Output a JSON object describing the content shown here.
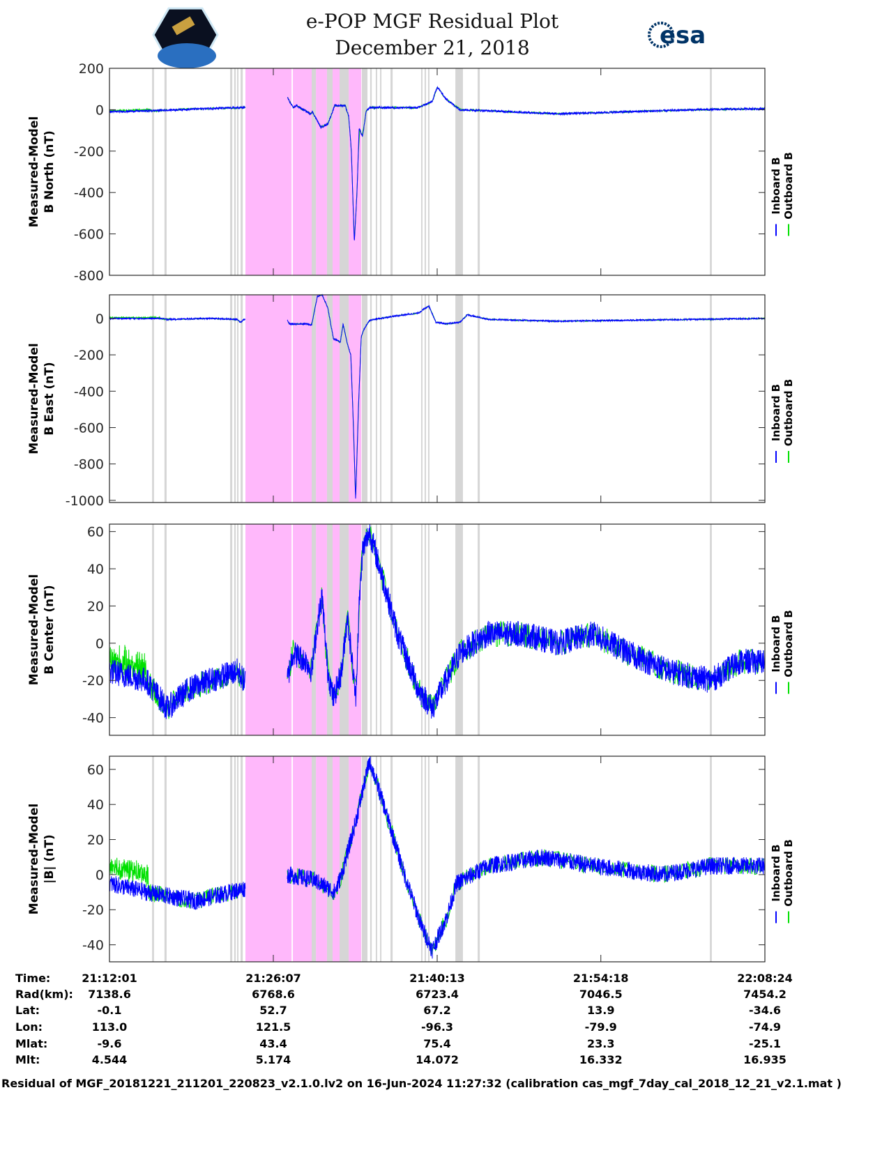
{
  "header": {
    "title": "e-POP MGF Residual Plot",
    "date": "December 21, 2018",
    "left_logo": "CASSIOPE",
    "right_logo": "esa"
  },
  "colors": {
    "inboard": "#0000ff",
    "outboard": "#00e000",
    "pink_band": "#ffb8fb",
    "gray_band": "#d6d6d6"
  },
  "chart_data": {
    "type": "line",
    "x_unit": "seconds since 21:12:01",
    "xlim": [
      0,
      3384
    ],
    "xticks": [
      0,
      846,
      1692,
      2537,
      3384
    ],
    "legend": [
      "Inboard B",
      "Outboard B"
    ],
    "legend_placement": "right",
    "gray_bands": [
      [
        220,
        230
      ],
      [
        284,
        295
      ],
      [
        623,
        634
      ],
      [
        644,
        652
      ],
      [
        659,
        666
      ],
      [
        677,
        688
      ],
      [
        1044,
        1066
      ],
      [
        1123,
        1152
      ],
      [
        1188,
        1235
      ],
      [
        1303,
        1332
      ],
      [
        1346,
        1354
      ],
      [
        1375,
        1382
      ],
      [
        1397,
        1404
      ],
      [
        1451,
        1462
      ],
      [
        1609,
        1616
      ],
      [
        1627,
        1634
      ],
      [
        1645,
        1652
      ],
      [
        1786,
        1825
      ],
      [
        1901,
        1912
      ],
      [
        3100,
        3110
      ]
    ],
    "pink_bands": [
      [
        702,
        940
      ],
      [
        947,
        1044
      ],
      [
        1066,
        1123
      ],
      [
        1152,
        1188
      ],
      [
        1235,
        1300
      ]
    ],
    "data_gap": [
      702,
      918
    ],
    "panels": [
      {
        "ylabel": [
          "Measured-Model",
          "B North (nT)"
        ],
        "ylim": [
          -800,
          200
        ],
        "yticks": [
          200,
          0,
          -200,
          -400,
          -600,
          -800
        ],
        "noise": 5,
        "green_until": 220,
        "green_offset": 4,
        "points": [
          [
            0,
            -10
          ],
          [
            220,
            -5
          ],
          [
            479,
            5
          ],
          [
            695,
            10
          ],
          [
            918,
            60
          ],
          [
            947,
            10
          ],
          [
            965,
            20
          ],
          [
            1037,
            -20
          ],
          [
            1048,
            -10
          ],
          [
            1091,
            -85
          ],
          [
            1127,
            -70
          ],
          [
            1163,
            20
          ],
          [
            1217,
            20
          ],
          [
            1235,
            -30
          ],
          [
            1249,
            -200
          ],
          [
            1264,
            -640
          ],
          [
            1278,
            -400
          ],
          [
            1289,
            -90
          ],
          [
            1307,
            -130
          ],
          [
            1325,
            -10
          ],
          [
            1343,
            10
          ],
          [
            1595,
            10
          ],
          [
            1667,
            40
          ],
          [
            1692,
            110
          ],
          [
            1739,
            50
          ],
          [
            1811,
            0
          ],
          [
            1955,
            -5
          ],
          [
            2315,
            -20
          ],
          [
            2675,
            -10
          ],
          [
            3035,
            0
          ],
          [
            3384,
            5
          ]
        ]
      },
      {
        "ylabel": [
          "Measured-Model",
          "B East (nT)"
        ],
        "ylim": [
          -1012,
          130
        ],
        "yticks": [
          0,
          -200,
          -400,
          -600,
          -800,
          -1000
        ],
        "noise": 4,
        "green_until": 263,
        "green_offset": 4,
        "points": [
          [
            0,
            0
          ],
          [
            263,
            0
          ],
          [
            299,
            -5
          ],
          [
            515,
            0
          ],
          [
            659,
            -5
          ],
          [
            677,
            -20
          ],
          [
            695,
            -5
          ],
          [
            918,
            -10
          ],
          [
            929,
            -30
          ],
          [
            1019,
            -30
          ],
          [
            1044,
            -35
          ],
          [
            1073,
            120
          ],
          [
            1098,
            130
          ],
          [
            1127,
            60
          ],
          [
            1156,
            -110
          ],
          [
            1192,
            -130
          ],
          [
            1206,
            -30
          ],
          [
            1228,
            -140
          ],
          [
            1246,
            -200
          ],
          [
            1260,
            -600
          ],
          [
            1271,
            -1000
          ],
          [
            1285,
            -500
          ],
          [
            1300,
            -100
          ],
          [
            1314,
            -60
          ],
          [
            1343,
            -10
          ],
          [
            1451,
            10
          ],
          [
            1595,
            30
          ],
          [
            1649,
            70
          ],
          [
            1685,
            -20
          ],
          [
            1739,
            -30
          ],
          [
            1811,
            -20
          ],
          [
            1847,
            20
          ],
          [
            1955,
            -5
          ],
          [
            2315,
            -15
          ],
          [
            2675,
            -10
          ],
          [
            3384,
            0
          ]
        ]
      },
      {
        "ylabel": [
          "Measured-Model",
          "B Center (nT)"
        ],
        "ylim": [
          -49.5,
          64
        ],
        "yticks": [
          60,
          40,
          20,
          0,
          -20,
          -40
        ],
        "noise": 7,
        "green_until": 191,
        "green_offset": 6,
        "points": [
          [
            0,
            -15
          ],
          [
            191,
            -20
          ],
          [
            299,
            -35
          ],
          [
            407,
            -25
          ],
          [
            515,
            -20
          ],
          [
            659,
            -15
          ],
          [
            695,
            -20
          ],
          [
            918,
            -20
          ],
          [
            947,
            -5
          ],
          [
            1019,
            -10
          ],
          [
            1044,
            -15
          ],
          [
            1073,
            10
          ],
          [
            1098,
            25
          ],
          [
            1127,
            -15
          ],
          [
            1156,
            -30
          ],
          [
            1199,
            -15
          ],
          [
            1228,
            15
          ],
          [
            1253,
            -10
          ],
          [
            1271,
            -30
          ],
          [
            1289,
            20
          ],
          [
            1307,
            50
          ],
          [
            1343,
            60
          ],
          [
            1397,
            40
          ],
          [
            1487,
            5
          ],
          [
            1595,
            -25
          ],
          [
            1667,
            -35
          ],
          [
            1739,
            -20
          ],
          [
            1811,
            -5
          ],
          [
            1955,
            5
          ],
          [
            2135,
            5
          ],
          [
            2315,
            0
          ],
          [
            2495,
            5
          ],
          [
            2675,
            -5
          ],
          [
            2891,
            -15
          ],
          [
            3107,
            -20
          ],
          [
            3251,
            -10
          ],
          [
            3384,
            -10
          ]
        ]
      },
      {
        "ylabel": [
          "Measured-Model",
          "|B| (nT)"
        ],
        "ylim": [
          -49.7,
          67.5
        ],
        "yticks": [
          60,
          40,
          20,
          0,
          -20,
          -40
        ],
        "noise": 5,
        "green_until": 200,
        "green_offset": 10,
        "points": [
          [
            0,
            -5
          ],
          [
            191,
            -10
          ],
          [
            443,
            -15
          ],
          [
            695,
            -8
          ],
          [
            918,
            0
          ],
          [
            1055,
            -3
          ],
          [
            1163,
            -10
          ],
          [
            1199,
            0
          ],
          [
            1271,
            30
          ],
          [
            1343,
            65
          ],
          [
            1415,
            40
          ],
          [
            1523,
            0
          ],
          [
            1613,
            -30
          ],
          [
            1667,
            -43
          ],
          [
            1739,
            -25
          ],
          [
            1793,
            -5
          ],
          [
            1955,
            5
          ],
          [
            2243,
            10
          ],
          [
            2495,
            5
          ],
          [
            2855,
            0
          ],
          [
            3107,
            5
          ],
          [
            3384,
            5
          ]
        ]
      }
    ]
  },
  "table": {
    "labels": [
      "Time:",
      "Rad(km):",
      "Lat:",
      "Lon:",
      "Mlat:",
      "Mlt:"
    ],
    "columns": [
      [
        "21:12:01",
        "7138.6",
        "-0.1",
        "113.0",
        "-9.6",
        "4.544"
      ],
      [
        "21:26:07",
        "6768.6",
        "52.7",
        "121.5",
        "43.4",
        "5.174"
      ],
      [
        "21:40:13",
        "6723.4",
        "67.2",
        "-96.3",
        "75.4",
        "14.072"
      ],
      [
        "21:54:18",
        "7046.5",
        "13.9",
        "-79.9",
        "23.3",
        "16.332"
      ],
      [
        "22:08:24",
        "7454.2",
        "-34.6",
        "-74.9",
        "-25.1",
        "16.935"
      ]
    ]
  },
  "footer": "Residual of MGF_20181221_211201_220823_v2.1.0.lv2 on 16-Jun-2024 11:27:32 (calibration cas_mgf_7day_cal_2018_12_21_v2.1.mat )"
}
